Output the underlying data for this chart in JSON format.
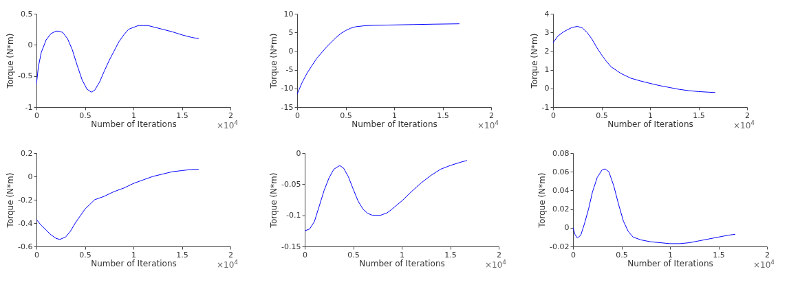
{
  "chart_data": [
    {
      "type": "line",
      "xlabel": "Number of Iterations",
      "ylabel": "Torque (N*m)",
      "annotations": [
        "×10$^{4}$"
      ],
      "xlim": [
        0,
        2
      ],
      "xticks": [
        0,
        0.5,
        1,
        1.5,
        2
      ],
      "ylim": [
        -1,
        0.5
      ],
      "yticks": [
        -1,
        -0.5,
        0,
        0.5
      ],
      "grid": false,
      "line_style": "solid",
      "series": [
        {
          "color": "#0000ff",
          "x": [
            0,
            0.02,
            0.05,
            0.1,
            0.15,
            0.2,
            0.23,
            0.27,
            0.32,
            0.37,
            0.42,
            0.47,
            0.52,
            0.565,
            0.6,
            0.65,
            0.7,
            0.75,
            0.8,
            0.85,
            0.9,
            0.95,
            1.0,
            1.05,
            1.1,
            1.15,
            1.2,
            1.3,
            1.4,
            1.5,
            1.6,
            1.67
          ],
          "values": [
            -0.63,
            -0.35,
            -0.12,
            0.08,
            0.18,
            0.22,
            0.22,
            0.2,
            0.1,
            -0.08,
            -0.33,
            -0.56,
            -0.71,
            -0.76,
            -0.73,
            -0.6,
            -0.42,
            -0.25,
            -0.1,
            0.05,
            0.16,
            0.25,
            0.28,
            0.31,
            0.31,
            0.31,
            0.29,
            0.25,
            0.21,
            0.16,
            0.12,
            0.1
          ]
        }
      ]
    },
    {
      "type": "line",
      "xlabel": "Number of Iterations",
      "ylabel": "Torque (N*m)",
      "annotations": [
        "×10$^{4}$"
      ],
      "xlim": [
        0,
        2
      ],
      "xticks": [
        0,
        0.5,
        1,
        1.5,
        2
      ],
      "ylim": [
        -15,
        10
      ],
      "yticks": [
        -15,
        -10,
        -5,
        0,
        5,
        10
      ],
      "grid": false,
      "line_style": "solid",
      "series": [
        {
          "color": "#0000ff",
          "x": [
            0,
            0.05,
            0.1,
            0.15,
            0.2,
            0.25,
            0.3,
            0.35,
            0.4,
            0.45,
            0.5,
            0.55,
            0.6,
            0.7,
            0.8,
            1.0,
            1.2,
            1.4,
            1.67
          ],
          "values": [
            -11.5,
            -8.5,
            -6,
            -4,
            -2,
            -0.5,
            1,
            2.3,
            3.6,
            4.7,
            5.5,
            6.1,
            6.5,
            6.8,
            6.9,
            7,
            7.1,
            7.2,
            7.3
          ]
        }
      ]
    },
    {
      "type": "line",
      "xlabel": "Number of Iterations",
      "ylabel": "Torque (N*m)",
      "annotations": [
        "×10$^{4}$"
      ],
      "xlim": [
        0,
        2
      ],
      "xticks": [
        0,
        0.5,
        1,
        1.5,
        2
      ],
      "ylim": [
        -1,
        4
      ],
      "yticks": [
        -1,
        0,
        1,
        2,
        3,
        4
      ],
      "grid": false,
      "line_style": "solid",
      "series": [
        {
          "color": "#0000ff",
          "x": [
            0,
            0.05,
            0.1,
            0.15,
            0.2,
            0.25,
            0.3,
            0.35,
            0.4,
            0.45,
            0.5,
            0.55,
            0.6,
            0.7,
            0.8,
            0.9,
            1.0,
            1.1,
            1.2,
            1.3,
            1.4,
            1.5,
            1.6,
            1.67
          ],
          "values": [
            2.45,
            2.8,
            3.0,
            3.15,
            3.27,
            3.32,
            3.25,
            3.0,
            2.65,
            2.2,
            1.8,
            1.45,
            1.15,
            0.8,
            0.55,
            0.4,
            0.27,
            0.15,
            0.05,
            -0.05,
            -0.12,
            -0.17,
            -0.2,
            -0.22
          ]
        }
      ]
    },
    {
      "type": "line",
      "xlabel": "Number of Iterations",
      "ylabel": "Torque (N*m)",
      "annotations": [
        "×10$^{4}$"
      ],
      "xlim": [
        0,
        2
      ],
      "xticks": [
        0,
        0.5,
        1,
        1.5,
        2
      ],
      "ylim": [
        -0.6,
        0.2
      ],
      "yticks": [
        -0.6,
        -0.4,
        -0.2,
        0,
        0.2
      ],
      "grid": false,
      "line_style": "solid",
      "series": [
        {
          "color": "#0000ff",
          "x": [
            0,
            0.05,
            0.1,
            0.15,
            0.2,
            0.24,
            0.3,
            0.35,
            0.4,
            0.45,
            0.5,
            0.55,
            0.6,
            0.7,
            0.8,
            0.9,
            1.0,
            1.1,
            1.2,
            1.3,
            1.4,
            1.5,
            1.6,
            1.67
          ],
          "values": [
            -0.37,
            -0.42,
            -0.46,
            -0.5,
            -0.53,
            -0.54,
            -0.52,
            -0.47,
            -0.4,
            -0.34,
            -0.28,
            -0.24,
            -0.2,
            -0.17,
            -0.13,
            -0.1,
            -0.06,
            -0.03,
            0,
            0.02,
            0.04,
            0.05,
            0.06,
            0.06
          ]
        }
      ]
    },
    {
      "type": "line",
      "xlabel": "Number of Iterations",
      "ylabel": "Torque (N*m)",
      "annotations": [
        "×10$^{4}$"
      ],
      "xlim": [
        0,
        2
      ],
      "xticks": [
        0,
        0.5,
        1,
        1.5,
        2
      ],
      "ylim": [
        -0.15,
        0
      ],
      "yticks": [
        -0.15,
        -0.1,
        -0.05,
        0
      ],
      "grid": false,
      "line_style": "solid",
      "series": [
        {
          "color": "#0000ff",
          "x": [
            0,
            0.05,
            0.1,
            0.15,
            0.2,
            0.25,
            0.3,
            0.36,
            0.4,
            0.45,
            0.5,
            0.55,
            0.6,
            0.65,
            0.7,
            0.78,
            0.85,
            0.9,
            1.0,
            1.1,
            1.2,
            1.3,
            1.4,
            1.5,
            1.6,
            1.67
          ],
          "values": [
            -0.125,
            -0.122,
            -0.11,
            -0.085,
            -0.06,
            -0.04,
            -0.026,
            -0.02,
            -0.024,
            -0.038,
            -0.058,
            -0.077,
            -0.09,
            -0.097,
            -0.1,
            -0.1,
            -0.096,
            -0.09,
            -0.077,
            -0.062,
            -0.048,
            -0.036,
            -0.026,
            -0.02,
            -0.015,
            -0.012
          ]
        }
      ]
    },
    {
      "type": "line",
      "xlabel": "Number of Iterations",
      "ylabel": "Torque (N*m)",
      "annotations": [
        "×10$^{4}$"
      ],
      "xlim": [
        0,
        2
      ],
      "xticks": [
        0,
        0.5,
        1,
        1.5,
        2
      ],
      "ylim": [
        -0.02,
        0.08
      ],
      "yticks": [
        -0.02,
        0,
        0.02,
        0.04,
        0.06,
        0.08
      ],
      "grid": false,
      "line_style": "solid",
      "series": [
        {
          "color": "#0000ff",
          "x": [
            0,
            0.02,
            0.045,
            0.08,
            0.12,
            0.16,
            0.2,
            0.25,
            0.3,
            0.33,
            0.37,
            0.42,
            0.47,
            0.52,
            0.57,
            0.62,
            0.7,
            0.8,
            0.9,
            1.0,
            1.1,
            1.2,
            1.3,
            1.4,
            1.5,
            1.6,
            1.67
          ],
          "values": [
            0,
            -0.007,
            -0.011,
            -0.008,
            0.005,
            0.02,
            0.038,
            0.054,
            0.062,
            0.063,
            0.06,
            0.045,
            0.025,
            0.007,
            -0.004,
            -0.01,
            -0.013,
            -0.015,
            -0.016,
            -0.017,
            -0.017,
            -0.016,
            -0.014,
            -0.012,
            -0.01,
            -0.008,
            -0.007
          ]
        }
      ]
    }
  ]
}
